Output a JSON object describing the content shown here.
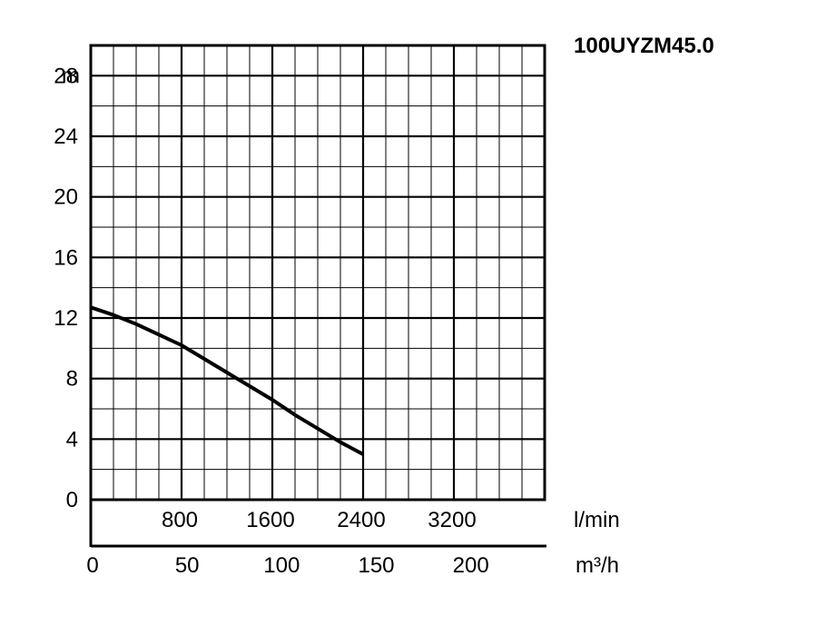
{
  "chart_data": {
    "type": "line",
    "title": "100UYZM45.0",
    "y_unit": "m",
    "x_unit_top": "l/min",
    "x_unit_bottom": "m³/h",
    "ylim": [
      0,
      30
    ],
    "y_ticks": [
      0,
      4,
      8,
      12,
      16,
      20,
      24,
      28
    ],
    "xlim_lmin": [
      0,
      4000
    ],
    "x_ticks_lmin": [
      800,
      1600,
      2400,
      3200
    ],
    "xlim_m3h": [
      0,
      240
    ],
    "x_ticks_m3h": [
      0,
      50,
      100,
      150,
      200
    ],
    "grid": true,
    "series": [
      {
        "x": [
          0,
          200,
          400,
          600,
          800,
          1000,
          1200,
          1400,
          1600,
          1800,
          2000,
          2200,
          2400
        ],
        "y": [
          12.7,
          12.2,
          11.6,
          10.9,
          10.2,
          9.3,
          8.4,
          7.5,
          6.6,
          5.6,
          4.7,
          3.8,
          3.0
        ]
      }
    ]
  }
}
